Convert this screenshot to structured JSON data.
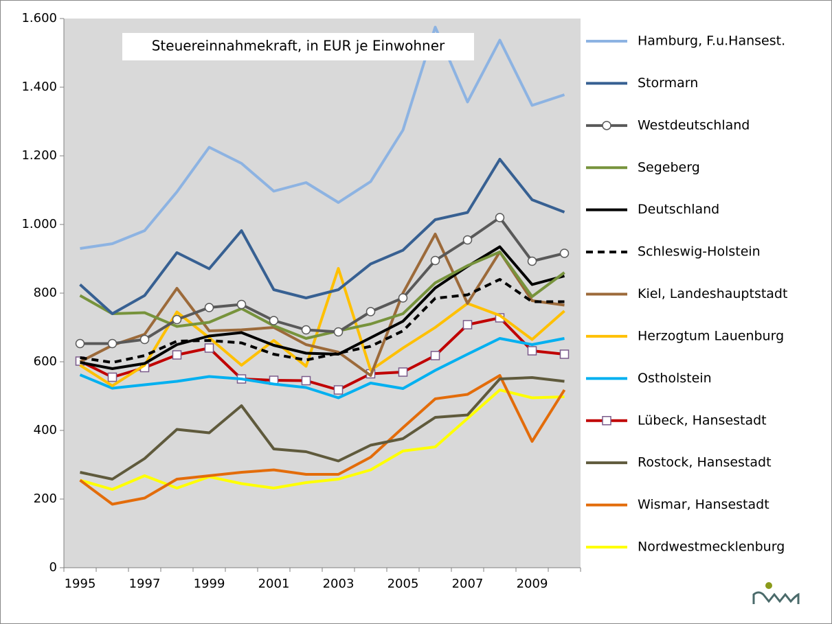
{
  "chart_data": {
    "type": "line",
    "annotation": "Steuereinnahmekraft, in EUR je Einwohner",
    "categories": [
      "1995",
      null,
      "1997",
      null,
      "1999",
      null,
      "2001",
      null,
      "2003",
      null,
      "2005",
      null,
      "2007",
      null,
      "2009",
      null
    ],
    "ylim": [
      0,
      1600
    ],
    "yticks": [
      0,
      200,
      400,
      600,
      800,
      {
        "value": 1000,
        "label": "1.000"
      },
      {
        "value": 1200,
        "label": "1.200"
      },
      {
        "value": 1400,
        "label": "1.400"
      },
      {
        "value": 1600,
        "label": "1.600"
      }
    ],
    "legend": "right",
    "series": [
      {
        "name": "Hamburg, F.u.Hansest.",
        "color": "#8db3e2",
        "values": [
          930,
          944,
          982,
          1095,
          1225,
          1178,
          1097,
          1122,
          1064,
          1125,
          1275,
          1575,
          1357,
          1537,
          1347,
          1378
        ]
      },
      {
        "name": "Stormarn",
        "color": "#376092",
        "values": [
          825,
          740,
          793,
          918,
          871,
          982,
          810,
          786,
          810,
          885,
          925,
          1014,
          1035,
          1190,
          1072,
          1036
        ]
      },
      {
        "name": "Westdeutschland",
        "color": "#595959",
        "marker": "circle",
        "values": [
          653,
          653,
          665,
          723,
          758,
          767,
          720,
          693,
          687,
          746,
          786,
          895,
          955,
          1020,
          893,
          916
        ]
      },
      {
        "name": "Segeberg",
        "color": "#77933c",
        "values": [
          793,
          740,
          743,
          703,
          715,
          755,
          705,
          668,
          690,
          710,
          740,
          830,
          880,
          920,
          790,
          860
        ]
      },
      {
        "name": "Deutschland",
        "color": "#000000",
        "values": [
          598,
          580,
          595,
          650,
          675,
          685,
          648,
          625,
          622,
          670,
          718,
          815,
          878,
          935,
          825,
          850
        ]
      },
      {
        "name": "Schleswig-Holstein",
        "color": "#000000",
        "dash": true,
        "values": [
          612,
          598,
          618,
          660,
          662,
          655,
          622,
          605,
          625,
          645,
          690,
          785,
          795,
          840,
          775,
          775
        ]
      },
      {
        "name": "Kiel, Landeshauptstadt",
        "color": "#9c6a3a",
        "values": [
          600,
          648,
          680,
          814,
          690,
          693,
          700,
          650,
          628,
          560,
          800,
          972,
          770,
          920,
          778,
          765
        ]
      },
      {
        "name": "Herzogtum Lauenburg",
        "color": "#ffc000",
        "values": [
          590,
          530,
          590,
          745,
          670,
          590,
          662,
          587,
          872,
          575,
          640,
          700,
          770,
          735,
          665,
          748
        ]
      },
      {
        "name": "Ostholstein",
        "color": "#00b0f0",
        "values": [
          562,
          523,
          533,
          543,
          557,
          550,
          535,
          525,
          495,
          538,
          522,
          575,
          622,
          668,
          650,
          668
        ]
      },
      {
        "name": "Lübeck, Hansestadt",
        "color": "#c00000",
        "marker": "square",
        "values": [
          602,
          555,
          583,
          620,
          640,
          550,
          546,
          545,
          518,
          565,
          570,
          618,
          708,
          728,
          632,
          622
        ]
      },
      {
        "name": "Rostock, Hansestadt",
        "color": "#5f5a3c",
        "values": [
          278,
          258,
          318,
          403,
          393,
          472,
          346,
          338,
          311,
          357,
          376,
          438,
          445,
          550,
          554,
          543
        ]
      },
      {
        "name": "Wismar, Hansestadt",
        "color": "#e36c0a",
        "values": [
          255,
          185,
          203,
          258,
          268,
          278,
          285,
          272,
          272,
          322,
          408,
          492,
          505,
          560,
          368,
          518
        ]
      },
      {
        "name": "Nordwestmecklenburg",
        "color": "#ffff00",
        "values": [
          255,
          228,
          268,
          232,
          265,
          245,
          232,
          248,
          258,
          285,
          340,
          352,
          435,
          518,
          495,
          498
        ]
      }
    ]
  }
}
